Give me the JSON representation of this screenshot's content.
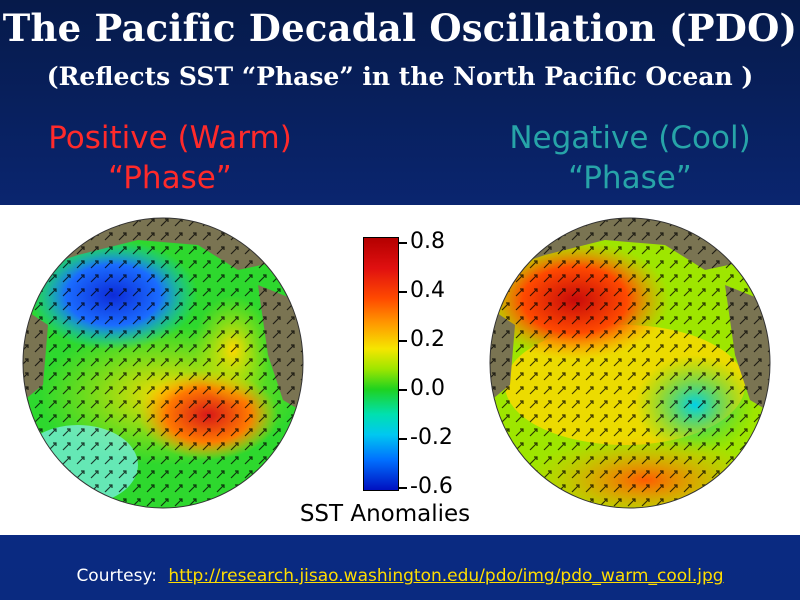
{
  "header": {
    "title": "The Pacific Decadal Oscillation (PDO)",
    "subtitle": "(Reflects SST “Phase” in the North Pacific Ocean )"
  },
  "phases": {
    "warm": {
      "line1": "Positive (Warm)",
      "line2": "“Phase”",
      "color": "#ff2a2a"
    },
    "cool": {
      "line1": "Negative (Cool)",
      "line2": "“Phase”",
      "color": "#27a4a8"
    }
  },
  "colorbar": {
    "ticks": [
      "0.8",
      "0.4",
      "0.2",
      "0.0",
      "-0.2",
      "-0.6"
    ],
    "label": "SST Anomalies"
  },
  "footer": {
    "courtesy_label": "Courtesy:",
    "link_text": "http://research.jisao.washington.edu/pdo/img/pdo_warm_cool.jpg"
  },
  "colors": {
    "background": "#0c2c86",
    "link": "#ffdd00",
    "land": "#7a7452"
  }
}
